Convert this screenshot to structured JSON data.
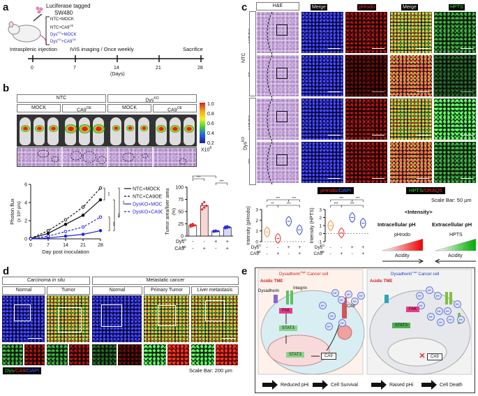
{
  "panels": {
    "a": "a",
    "b": "b",
    "c": "c",
    "d": "d",
    "e": "e"
  },
  "panel_a": {
    "title_line1": "Luciferase tagged",
    "title_line2": "SW480",
    "groups": [
      "NTC+MOCK",
      "NTC+CA9",
      "Dys+MOCK",
      "Dys+CA9"
    ],
    "group_sups": [
      "",
      "OE",
      "KO",
      "KO"
    ],
    "group_sups2": [
      "",
      "",
      "",
      "OE"
    ],
    "step1": "Intrasplenic injection",
    "step2": "IVIS imaging / Once weekly",
    "step3": "Sacrifice",
    "ticks": [
      "0",
      "7",
      "14",
      "21",
      "28"
    ],
    "days": "(Days)"
  },
  "panel_b": {
    "ntc": "NTC",
    "dys": "Dys",
    "ko": "KO",
    "mock": "MOCK",
    "ca9": "CA9",
    "oe": "OE",
    "scale": [
      "1.0",
      "0.8",
      "0.6",
      "0.4",
      "0.2"
    ],
    "scale_unit": "X10",
    "scale_exp": "6"
  },
  "chart_data": [
    {
      "type": "line",
      "ylabel": "Photon flux",
      "yunit": "(x 10⁸ p/s)",
      "xlabel": "Day post inoculation",
      "x": [
        0,
        7,
        14,
        21,
        28
      ],
      "ylim": [
        0,
        6
      ],
      "yticks": [
        "0",
        "2",
        "4",
        "6"
      ],
      "xticks": [
        "0",
        "7",
        "14",
        "21",
        "28"
      ],
      "series": [
        {
          "name": "NTC+MOCK",
          "color": "#111111",
          "dash": false,
          "values": [
            0.05,
            0.6,
            1.6,
            2.6,
            4.3
          ]
        },
        {
          "name": "NTC+CA9OE",
          "color": "#111111",
          "dash": true,
          "values": [
            0.05,
            0.9,
            2.1,
            3.5,
            5.6
          ]
        },
        {
          "name": "DysKO+MOCK",
          "color": "#2222dd",
          "dash": false,
          "values": [
            0.02,
            0.1,
            0.3,
            0.5,
            0.9
          ]
        },
        {
          "name": "DysKO+CA9OE",
          "color": "#2222dd",
          "dash": true,
          "values": [
            0.02,
            0.3,
            0.8,
            1.3,
            2.4
          ]
        }
      ],
      "sig": [
        "***",
        "***",
        "***",
        "***"
      ]
    },
    {
      "type": "bar",
      "ylabel": "Tumor area/liver area",
      "yunit": "(%)",
      "ylim": [
        0,
        100
      ],
      "yticks": [
        "0",
        "25",
        "50",
        "75",
        "100"
      ],
      "values": [
        22,
        62,
        10,
        18
      ],
      "colors": [
        "#ee2222",
        "#ee2222",
        "#2a2ad4",
        "#2a2ad4"
      ],
      "fills": [
        "#ffffff",
        "#ee2222",
        "#ffffff",
        "#2a2ad4"
      ],
      "row1_label": "Dys",
      "row1_sup": "KO",
      "row1": [
        "-",
        "-",
        "+",
        "+"
      ],
      "row2_label": "CA9",
      "row2_sup": "OE",
      "row2": [
        "-",
        "+",
        "-",
        "+"
      ],
      "sig": [
        "***",
        "***",
        "***",
        "***"
      ]
    },
    {
      "type": "violin",
      "ylabel": "Intensity (pHrodo)",
      "ylim": [
        0,
        3
      ],
      "yticks": [
        "0",
        "1",
        "2",
        "3"
      ],
      "values": [
        0.9,
        0.3,
        1.9,
        1.1
      ],
      "colors": [
        "#ee8833",
        "#ee2222",
        "#3344cc",
        "#3344cc"
      ],
      "row1_label": "Dys",
      "row1_sup": "KO",
      "row1": [
        "-",
        "-",
        "+",
        "+"
      ],
      "row2_label": "CA9",
      "row2_sup": "OE",
      "row2": [
        "-",
        "+",
        "-",
        "+"
      ],
      "sig": [
        "**",
        "***",
        "***",
        "***"
      ]
    },
    {
      "type": "violin",
      "ylabel": "Intensity (HPTS)",
      "ylim": [
        -1,
        3
      ],
      "yticks": [
        "-1",
        "0",
        "1",
        "2",
        "3"
      ],
      "values": [
        1.0,
        0.1,
        2.0,
        1.3
      ],
      "colors": [
        "#ee8833",
        "#ee2222",
        "#3344cc",
        "#3344cc"
      ],
      "row1_label": "Dys",
      "row1_sup": "KO",
      "row1": [
        "-",
        "-",
        "+",
        "+"
      ],
      "row2_label": "CA9",
      "row2_sup": "OE",
      "row2": [
        "-",
        "+",
        "-",
        "+"
      ],
      "sig": [
        "***",
        "***",
        "***",
        "***"
      ]
    }
  ],
  "panel_c": {
    "cols": [
      "H&E",
      "Merge",
      "pHrodo",
      "Merge",
      "HPTS"
    ],
    "rows": [
      "MOCK",
      "CA9",
      "MOCK",
      "CA9"
    ],
    "row_sup": [
      "",
      "OE",
      "",
      "OE"
    ],
    "group_ntc": "NTC",
    "group_dys": "Dys",
    "group_dys_sup": "KO",
    "foot_left_red": "pHrodo",
    "foot_left_blue": "/DAPI",
    "foot_right_green": "HPTS",
    "foot_right_red": "/DRAQ5",
    "scale_bar": "Scale Bar: 50 μm",
    "intensity_title": "<Intensity>",
    "intra": "Intracellular pH",
    "extra": "Extracellular pH",
    "phrodo": "pHrodo",
    "hpts": "HPTS",
    "acidity": "Acidity"
  },
  "panel_d": {
    "cis": "Carcinoma ",
    "cis_italic": "in situ",
    "meta": "Metastatic cancer",
    "cols": [
      "Normal",
      "Tumor",
      "Normal",
      "Primary Tumor",
      "Liver metastasis"
    ],
    "legend_green": "Dys",
    "legend_red": "/CA9",
    "legend_blue": "/DAPI",
    "scale_bar": "Scale Bar: 200 μm"
  },
  "panel_e": {
    "left_title_a": "Dysadherin",
    "left_title_sup": "High",
    "left_title_b": " Cancer cell",
    "right_title_a": "Dysadherin",
    "right_title_sup": "Low",
    "right_title_b": " Cancer cell",
    "acidic": "Acidic TME",
    "dysadherin": "Dysadherin",
    "integrin": "Integrin",
    "fak": "FAK",
    "stat3": "STAT3",
    "ca9": "CA9",
    "hplus": "H+",
    "left_out1": "Reduced pHi",
    "left_out2": "Cell Survival",
    "right_out1": "Raised pHi",
    "right_out2": "Cell Death"
  }
}
